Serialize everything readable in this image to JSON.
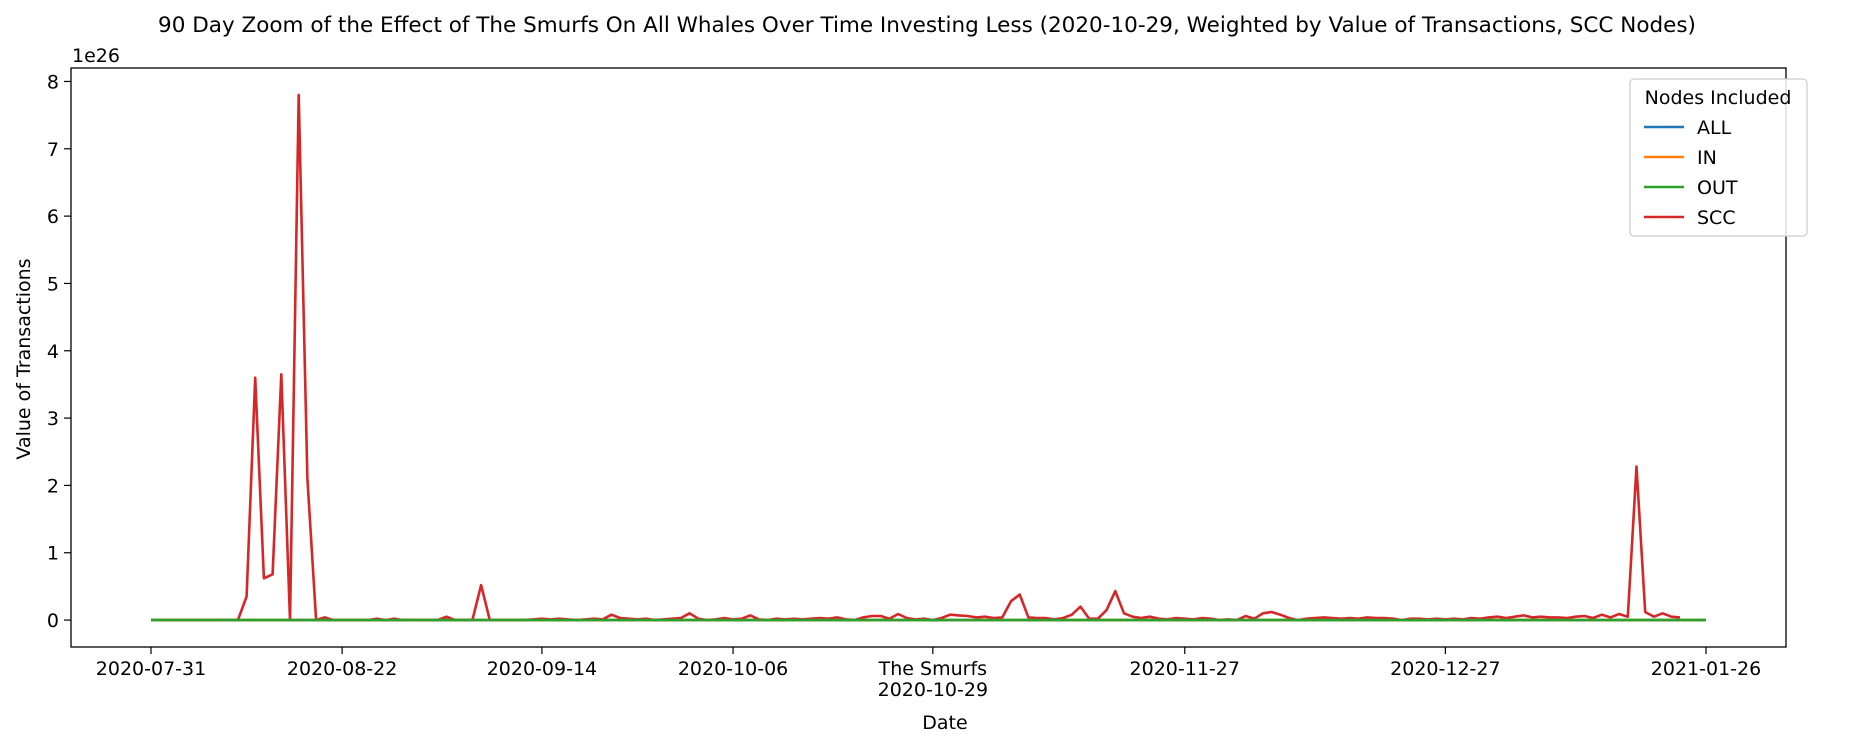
{
  "chart_data": {
    "type": "line",
    "title": "90 Day Zoom of the Effect of The Smurfs On All Whales Over Time Investing Less (2020-10-29, Weighted by Value of Transactions, SCC Nodes)",
    "xlabel": "Date",
    "ylabel": "Value of Transactions",
    "y_multiplier_label": "1e26",
    "y_ticks": [
      0,
      1,
      2,
      3,
      4,
      5,
      6,
      7,
      8
    ],
    "ylim": [
      -0.4,
      8.2
    ],
    "x_range": [
      "2020-07-31",
      "2021-01-26"
    ],
    "x_ticks": [
      {
        "date": "2020-07-31",
        "label": "2020-07-31"
      },
      {
        "date": "2020-08-22",
        "label": "2020-08-22"
      },
      {
        "date": "2020-09-14",
        "label": "2020-09-14"
      },
      {
        "date": "2020-10-06",
        "label": "2020-10-06"
      },
      {
        "date": "2020-10-29",
        "label": "The Smurfs",
        "label2": "2020-10-29"
      },
      {
        "date": "2020-11-27",
        "label": "2020-11-27"
      },
      {
        "date": "2020-12-27",
        "label": "2020-12-27"
      },
      {
        "date": "2021-01-26",
        "label": "2021-01-26"
      }
    ],
    "legend": {
      "title": "Nodes Included",
      "position": "top-right",
      "entries": [
        "ALL",
        "IN",
        "OUT",
        "SCC"
      ]
    },
    "colors": {
      "ALL": "#1f77b4",
      "IN": "#ff7f0e",
      "OUT": "#2ca02c",
      "SCC": "#d62728"
    },
    "series": [
      {
        "name": "ALL",
        "x_start": "2020-07-31",
        "x_end": "2021-01-26",
        "values": [
          0,
          0
        ]
      },
      {
        "name": "IN",
        "x_start": "2020-07-31",
        "x_end": "2021-01-26",
        "values": [
          0,
          0
        ]
      },
      {
        "name": "OUT",
        "x_start": "2020-07-31",
        "x_end": "2021-01-26",
        "values": [
          0,
          0
        ]
      },
      {
        "name": "SCC",
        "points": [
          [
            "2020-07-31",
            0
          ],
          [
            "2020-08-01",
            0
          ],
          [
            "2020-08-02",
            0
          ],
          [
            "2020-08-03",
            0
          ],
          [
            "2020-08-04",
            0
          ],
          [
            "2020-08-05",
            0
          ],
          [
            "2020-08-06",
            0
          ],
          [
            "2020-08-07",
            0
          ],
          [
            "2020-08-08",
            0
          ],
          [
            "2020-08-09",
            0
          ],
          [
            "2020-08-10",
            0
          ],
          [
            "2020-08-11",
            0.35
          ],
          [
            "2020-08-12",
            3.6
          ],
          [
            "2020-08-13",
            0.62
          ],
          [
            "2020-08-14",
            0.68
          ],
          [
            "2020-08-15",
            3.65
          ],
          [
            "2020-08-16",
            0
          ],
          [
            "2020-08-17",
            7.8
          ],
          [
            "2020-08-18",
            2.1
          ],
          [
            "2020-08-19",
            0
          ],
          [
            "2020-08-20",
            0.04
          ],
          [
            "2020-08-21",
            0
          ],
          [
            "2020-08-22",
            0
          ],
          [
            "2020-08-23",
            0
          ],
          [
            "2020-08-24",
            0
          ],
          [
            "2020-08-25",
            0
          ],
          [
            "2020-08-26",
            0.02
          ],
          [
            "2020-08-27",
            0
          ],
          [
            "2020-08-28",
            0.02
          ],
          [
            "2020-08-29",
            0
          ],
          [
            "2020-08-30",
            0
          ],
          [
            "2020-08-31",
            0
          ],
          [
            "2020-09-01",
            0
          ],
          [
            "2020-09-02",
            0
          ],
          [
            "2020-09-03",
            0.05
          ],
          [
            "2020-09-04",
            0
          ],
          [
            "2020-09-05",
            0
          ],
          [
            "2020-09-06",
            0
          ],
          [
            "2020-09-07",
            0.52
          ],
          [
            "2020-09-08",
            0
          ],
          [
            "2020-09-09",
            0
          ],
          [
            "2020-09-10",
            0
          ],
          [
            "2020-09-11",
            0
          ],
          [
            "2020-09-12",
            0
          ],
          [
            "2020-09-13",
            0.01
          ],
          [
            "2020-09-14",
            0.02
          ],
          [
            "2020-09-15",
            0.01
          ],
          [
            "2020-09-16",
            0.02
          ],
          [
            "2020-09-17",
            0.01
          ],
          [
            "2020-09-18",
            0
          ],
          [
            "2020-09-19",
            0.01
          ],
          [
            "2020-09-20",
            0.02
          ],
          [
            "2020-09-21",
            0.01
          ],
          [
            "2020-09-22",
            0.08
          ],
          [
            "2020-09-23",
            0.03
          ],
          [
            "2020-09-24",
            0.02
          ],
          [
            "2020-09-25",
            0.01
          ],
          [
            "2020-09-26",
            0.02
          ],
          [
            "2020-09-27",
            0
          ],
          [
            "2020-09-28",
            0.01
          ],
          [
            "2020-09-29",
            0.02
          ],
          [
            "2020-09-30",
            0.03
          ],
          [
            "2020-10-01",
            0.1
          ],
          [
            "2020-10-02",
            0.02
          ],
          [
            "2020-10-03",
            0
          ],
          [
            "2020-10-04",
            0.01
          ],
          [
            "2020-10-05",
            0.03
          ],
          [
            "2020-10-06",
            0.01
          ],
          [
            "2020-10-07",
            0.02
          ],
          [
            "2020-10-08",
            0.07
          ],
          [
            "2020-10-09",
            0.01
          ],
          [
            "2020-10-10",
            0
          ],
          [
            "2020-10-11",
            0.02
          ],
          [
            "2020-10-12",
            0.01
          ],
          [
            "2020-10-13",
            0.02
          ],
          [
            "2020-10-14",
            0.01
          ],
          [
            "2020-10-15",
            0.02
          ],
          [
            "2020-10-16",
            0.03
          ],
          [
            "2020-10-17",
            0.02
          ],
          [
            "2020-10-18",
            0.04
          ],
          [
            "2020-10-19",
            0.01
          ],
          [
            "2020-10-20",
            0
          ],
          [
            "2020-10-21",
            0.04
          ],
          [
            "2020-10-22",
            0.06
          ],
          [
            "2020-10-23",
            0.06
          ],
          [
            "2020-10-24",
            0.02
          ],
          [
            "2020-10-25",
            0.09
          ],
          [
            "2020-10-26",
            0.03
          ],
          [
            "2020-10-27",
            0.01
          ],
          [
            "2020-10-28",
            0.02
          ],
          [
            "2020-10-29",
            0
          ],
          [
            "2020-10-30",
            0.03
          ],
          [
            "2020-10-31",
            0.08
          ],
          [
            "2020-11-01",
            0.07
          ],
          [
            "2020-11-02",
            0.06
          ],
          [
            "2020-11-03",
            0.04
          ],
          [
            "2020-11-04",
            0.05
          ],
          [
            "2020-11-05",
            0.03
          ],
          [
            "2020-11-06",
            0.04
          ],
          [
            "2020-11-07",
            0.28
          ],
          [
            "2020-11-08",
            0.38
          ],
          [
            "2020-11-09",
            0.04
          ],
          [
            "2020-11-10",
            0.03
          ],
          [
            "2020-11-11",
            0.03
          ],
          [
            "2020-11-12",
            0.01
          ],
          [
            "2020-11-13",
            0.03
          ],
          [
            "2020-11-14",
            0.08
          ],
          [
            "2020-11-15",
            0.2
          ],
          [
            "2020-11-16",
            0.02
          ],
          [
            "2020-11-17",
            0.02
          ],
          [
            "2020-11-18",
            0.15
          ],
          [
            "2020-11-19",
            0.43
          ],
          [
            "2020-11-20",
            0.1
          ],
          [
            "2020-11-21",
            0.05
          ],
          [
            "2020-11-22",
            0.03
          ],
          [
            "2020-11-23",
            0.05
          ],
          [
            "2020-11-24",
            0.02
          ],
          [
            "2020-11-25",
            0.01
          ],
          [
            "2020-11-26",
            0.03
          ],
          [
            "2020-11-27",
            0.02
          ],
          [
            "2020-11-28",
            0.01
          ],
          [
            "2020-11-29",
            0.03
          ],
          [
            "2020-11-30",
            0.02
          ],
          [
            "2020-12-01",
            0
          ],
          [
            "2020-12-02",
            0.01
          ],
          [
            "2020-12-03",
            0
          ],
          [
            "2020-12-04",
            0.06
          ],
          [
            "2020-12-05",
            0.02
          ],
          [
            "2020-12-06",
            0.1
          ],
          [
            "2020-12-07",
            0.12
          ],
          [
            "2020-12-08",
            0.08
          ],
          [
            "2020-12-09",
            0.03
          ],
          [
            "2020-12-10",
            0
          ],
          [
            "2020-12-11",
            0.02
          ],
          [
            "2020-12-12",
            0.03
          ],
          [
            "2020-12-13",
            0.04
          ],
          [
            "2020-12-14",
            0.03
          ],
          [
            "2020-12-15",
            0.02
          ],
          [
            "2020-12-16",
            0.03
          ],
          [
            "2020-12-17",
            0.02
          ],
          [
            "2020-12-18",
            0.04
          ],
          [
            "2020-12-19",
            0.03
          ],
          [
            "2020-12-20",
            0.03
          ],
          [
            "2020-12-21",
            0.02
          ],
          [
            "2020-12-22",
            0
          ],
          [
            "2020-12-23",
            0.02
          ],
          [
            "2020-12-24",
            0.02
          ],
          [
            "2020-12-25",
            0.01
          ],
          [
            "2020-12-26",
            0.02
          ],
          [
            "2020-12-27",
            0.01
          ],
          [
            "2020-12-28",
            0.02
          ],
          [
            "2020-12-29",
            0.01
          ],
          [
            "2020-12-30",
            0.03
          ],
          [
            "2020-12-31",
            0.02
          ],
          [
            "2021-01-01",
            0.04
          ],
          [
            "2021-01-02",
            0.05
          ],
          [
            "2021-01-03",
            0.03
          ],
          [
            "2021-01-04",
            0.05
          ],
          [
            "2021-01-05",
            0.07
          ],
          [
            "2021-01-06",
            0.04
          ],
          [
            "2021-01-07",
            0.05
          ],
          [
            "2021-01-08",
            0.04
          ],
          [
            "2021-01-09",
            0.04
          ],
          [
            "2021-01-10",
            0.03
          ],
          [
            "2021-01-11",
            0.05
          ],
          [
            "2021-01-12",
            0.06
          ],
          [
            "2021-01-13",
            0.03
          ],
          [
            "2021-01-14",
            0.08
          ],
          [
            "2021-01-15",
            0.04
          ],
          [
            "2021-01-16",
            0.09
          ],
          [
            "2021-01-17",
            0.05
          ],
          [
            "2021-01-18",
            2.28
          ],
          [
            "2021-01-19",
            0.12
          ],
          [
            "2021-01-20",
            0.05
          ],
          [
            "2021-01-21",
            0.1
          ],
          [
            "2021-01-22",
            0.05
          ],
          [
            "2021-01-23",
            0.04
          ]
        ]
      }
    ]
  }
}
